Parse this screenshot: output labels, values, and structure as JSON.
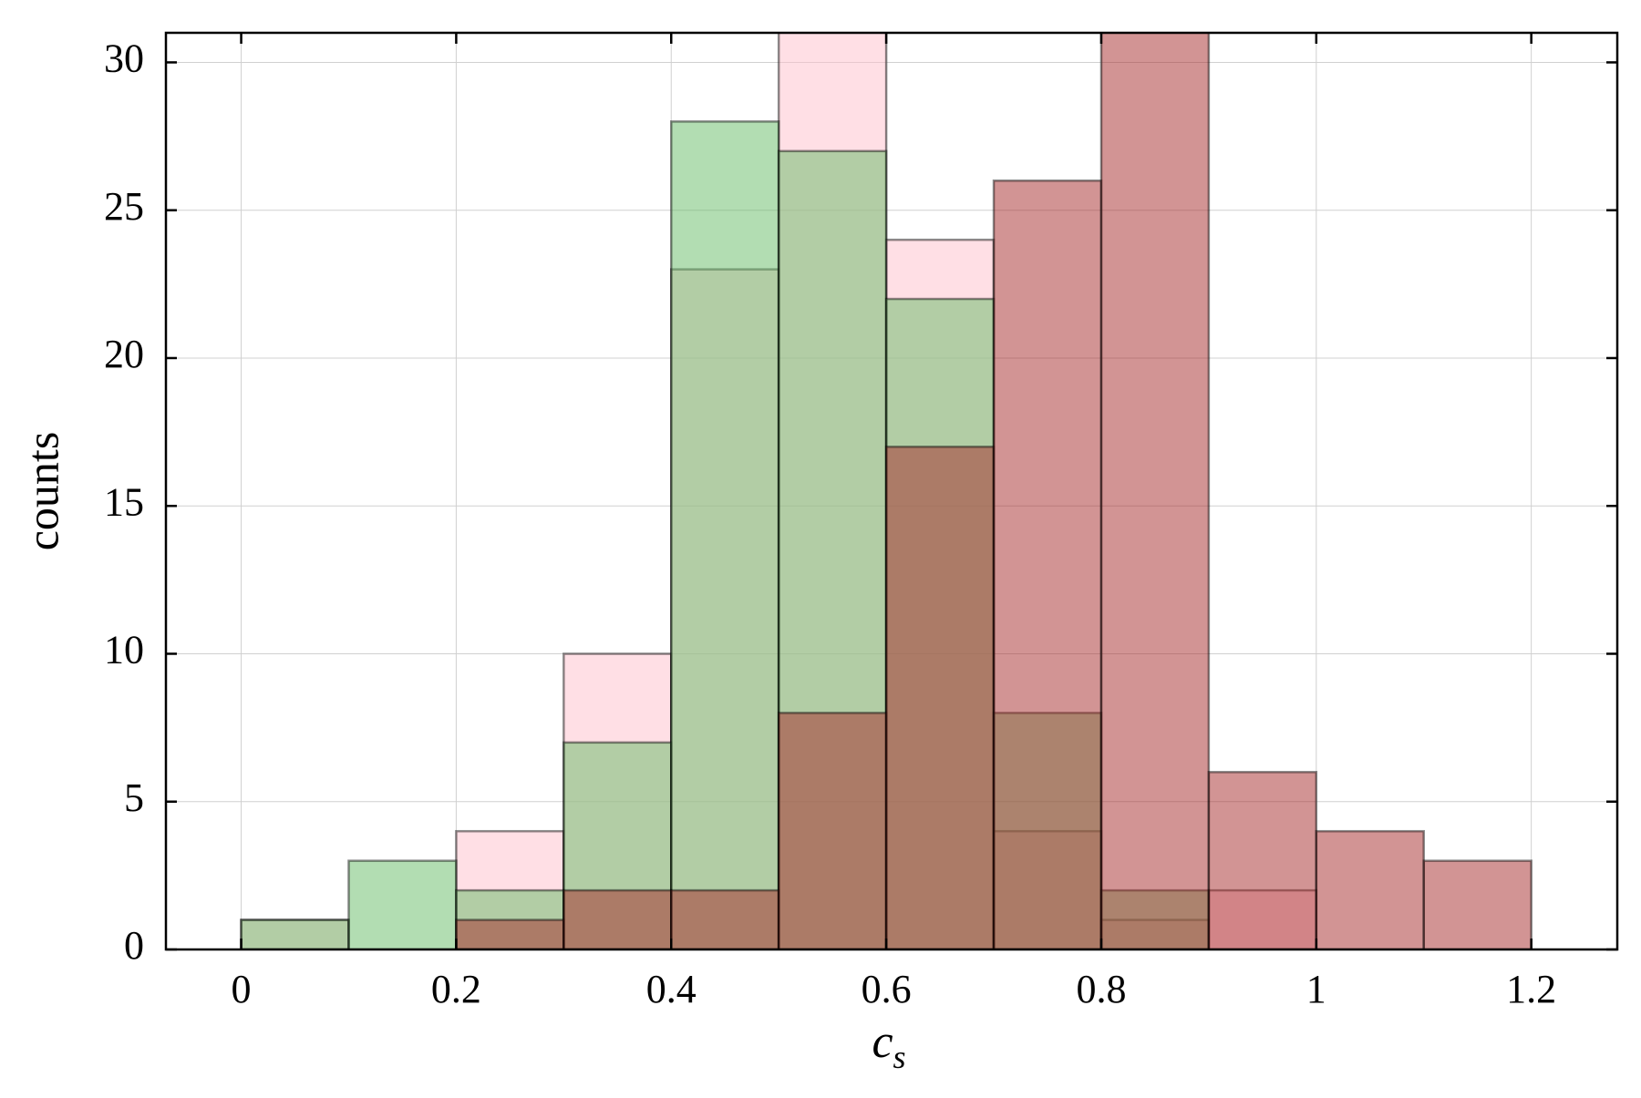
{
  "chart_data": {
    "type": "histogram",
    "x_label": "c",
    "x_label_sub": "s",
    "y_label": "counts",
    "bins": [
      0,
      0.1,
      0.2,
      0.3,
      0.4,
      0.5,
      0.6,
      0.7,
      0.8,
      0.9,
      1,
      1.1,
      1.2
    ],
    "series": [
      {
        "color": "#ffc0cb",
        "values": [
          1,
          0,
          4,
          10,
          23,
          32,
          24,
          4,
          1,
          2,
          0,
          0
        ]
      },
      {
        "color": "#66bb66",
        "values": [
          1,
          3,
          2,
          7,
          28,
          27,
          22,
          8,
          2,
          0,
          0,
          0
        ]
      },
      {
        "color": "#a52a2a",
        "values": [
          0,
          0,
          1,
          2,
          2,
          8,
          17,
          26,
          32,
          6,
          4,
          3
        ]
      }
    ],
    "opacity": 0.5,
    "xlim": [
      -0.07,
      1.28
    ],
    "ylim": [
      0,
      31
    ],
    "xticks": [
      0,
      0.2,
      0.4,
      0.6,
      0.8,
      1,
      1.2
    ],
    "yticks": [
      0,
      5,
      10,
      15,
      20,
      25,
      30
    ],
    "grid": true
  }
}
